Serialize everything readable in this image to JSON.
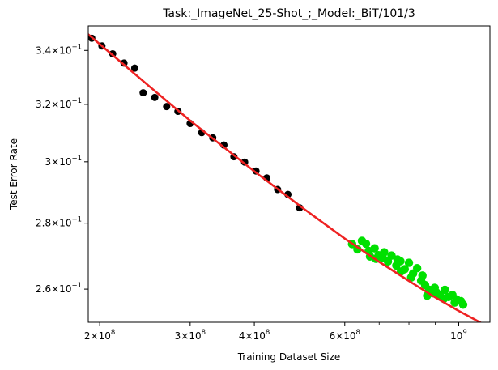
{
  "chart_data": {
    "type": "scatter",
    "title": "Task:_ImageNet_25-Shot_;_Model:_BiT/101/3",
    "xlabel": "Training Dataset Size",
    "ylabel": "Test Error Rate",
    "x_scale": "log",
    "y_scale": "log",
    "xlim": [
      190000000,
      1150000000
    ],
    "ylim": [
      0.2505,
      0.3495
    ],
    "grid": false,
    "legend": "none",
    "x_ticks": [
      {
        "value": 200000000,
        "mant": "2",
        "exp": "8"
      },
      {
        "value": 300000000,
        "mant": "3",
        "exp": "8"
      },
      {
        "value": 400000000,
        "mant": "4",
        "exp": "8"
      },
      {
        "value": 600000000,
        "mant": "6",
        "exp": "8"
      },
      {
        "value": 1000000000,
        "mant": "",
        "exp": "9"
      }
    ],
    "x_minor_ticks": [
      500000000,
      700000000,
      800000000,
      900000000
    ],
    "y_ticks": [
      {
        "value": 0.26,
        "mant": "2.6",
        "exp": "−1"
      },
      {
        "value": 0.28,
        "mant": "2.8",
        "exp": "−1"
      },
      {
        "value": 0.3,
        "mant": "3",
        "exp": "−1"
      },
      {
        "value": 0.32,
        "mant": "3.2",
        "exp": "−1"
      },
      {
        "value": 0.34,
        "mant": "3.4",
        "exp": "−1"
      }
    ],
    "series": [
      {
        "color": "#000000",
        "points": [
          [
            193000000,
            0.3447
          ],
          [
            202000000,
            0.3417
          ],
          [
            212000000,
            0.3387
          ],
          [
            223000000,
            0.3352
          ],
          [
            234000000,
            0.3333
          ],
          [
            243000000,
            0.3242
          ],
          [
            256000000,
            0.3225
          ],
          [
            270000000,
            0.3192
          ],
          [
            284000000,
            0.3175
          ],
          [
            300000000,
            0.3132
          ],
          [
            316000000,
            0.31
          ],
          [
            332000000,
            0.3082
          ],
          [
            349000000,
            0.3057
          ],
          [
            365000000,
            0.3017
          ],
          [
            383000000,
            0.2999
          ],
          [
            403000000,
            0.2969
          ],
          [
            423000000,
            0.2946
          ],
          [
            444000000,
            0.2908
          ],
          [
            465000000,
            0.2892
          ],
          [
            490000000,
            0.2849
          ]
        ]
      },
      {
        "color": "#00e000",
        "points": [
          [
            620000000,
            0.2735
          ],
          [
            635000000,
            0.2719
          ],
          [
            648000000,
            0.2745
          ],
          [
            660000000,
            0.2736
          ],
          [
            672000000,
            0.2697
          ],
          [
            686000000,
            0.2722
          ],
          [
            698000000,
            0.2701
          ],
          [
            712000000,
            0.2692
          ],
          [
            728000000,
            0.2682
          ],
          [
            740000000,
            0.27
          ],
          [
            756000000,
            0.267
          ],
          [
            770000000,
            0.2683
          ],
          [
            785000000,
            0.2659
          ],
          [
            800000000,
            0.2678
          ],
          [
            815000000,
            0.2646
          ],
          [
            830000000,
            0.2662
          ],
          [
            845000000,
            0.2625
          ],
          [
            860000000,
            0.2612
          ],
          [
            876000000,
            0.2598
          ],
          [
            892000000,
            0.2588
          ],
          [
            905000000,
            0.259
          ],
          [
            920000000,
            0.2582
          ],
          [
            940000000,
            0.2598
          ],
          [
            955000000,
            0.2577
          ],
          [
            972000000,
            0.2583
          ],
          [
            990000000,
            0.257
          ],
          [
            1010000000,
            0.2565
          ],
          [
            668000000,
            0.2714
          ],
          [
            716000000,
            0.271
          ],
          [
            760000000,
            0.2688
          ],
          [
            808000000,
            0.2634
          ],
          [
            850000000,
            0.264
          ],
          [
            898000000,
            0.2604
          ],
          [
            935000000,
            0.2572
          ],
          [
            982000000,
            0.2561
          ],
          [
            1020000000,
            0.2555
          ],
          [
            690000000,
            0.269
          ],
          [
            772000000,
            0.2652
          ],
          [
            868000000,
            0.2581
          ]
        ]
      }
    ],
    "fit_line": {
      "color": "#ee2222",
      "points": [
        [
          190000000,
          0.3462
        ],
        [
          250000000,
          0.3265
        ],
        [
          300000000,
          0.3142
        ],
        [
          400000000,
          0.2968
        ],
        [
          500000000,
          0.2845
        ],
        [
          600000000,
          0.2752
        ],
        [
          700000000,
          0.2681
        ],
        [
          800000000,
          0.2624
        ],
        [
          900000000,
          0.2576
        ],
        [
          1000000000,
          0.2537
        ],
        [
          1150000000,
          0.249
        ]
      ]
    }
  }
}
